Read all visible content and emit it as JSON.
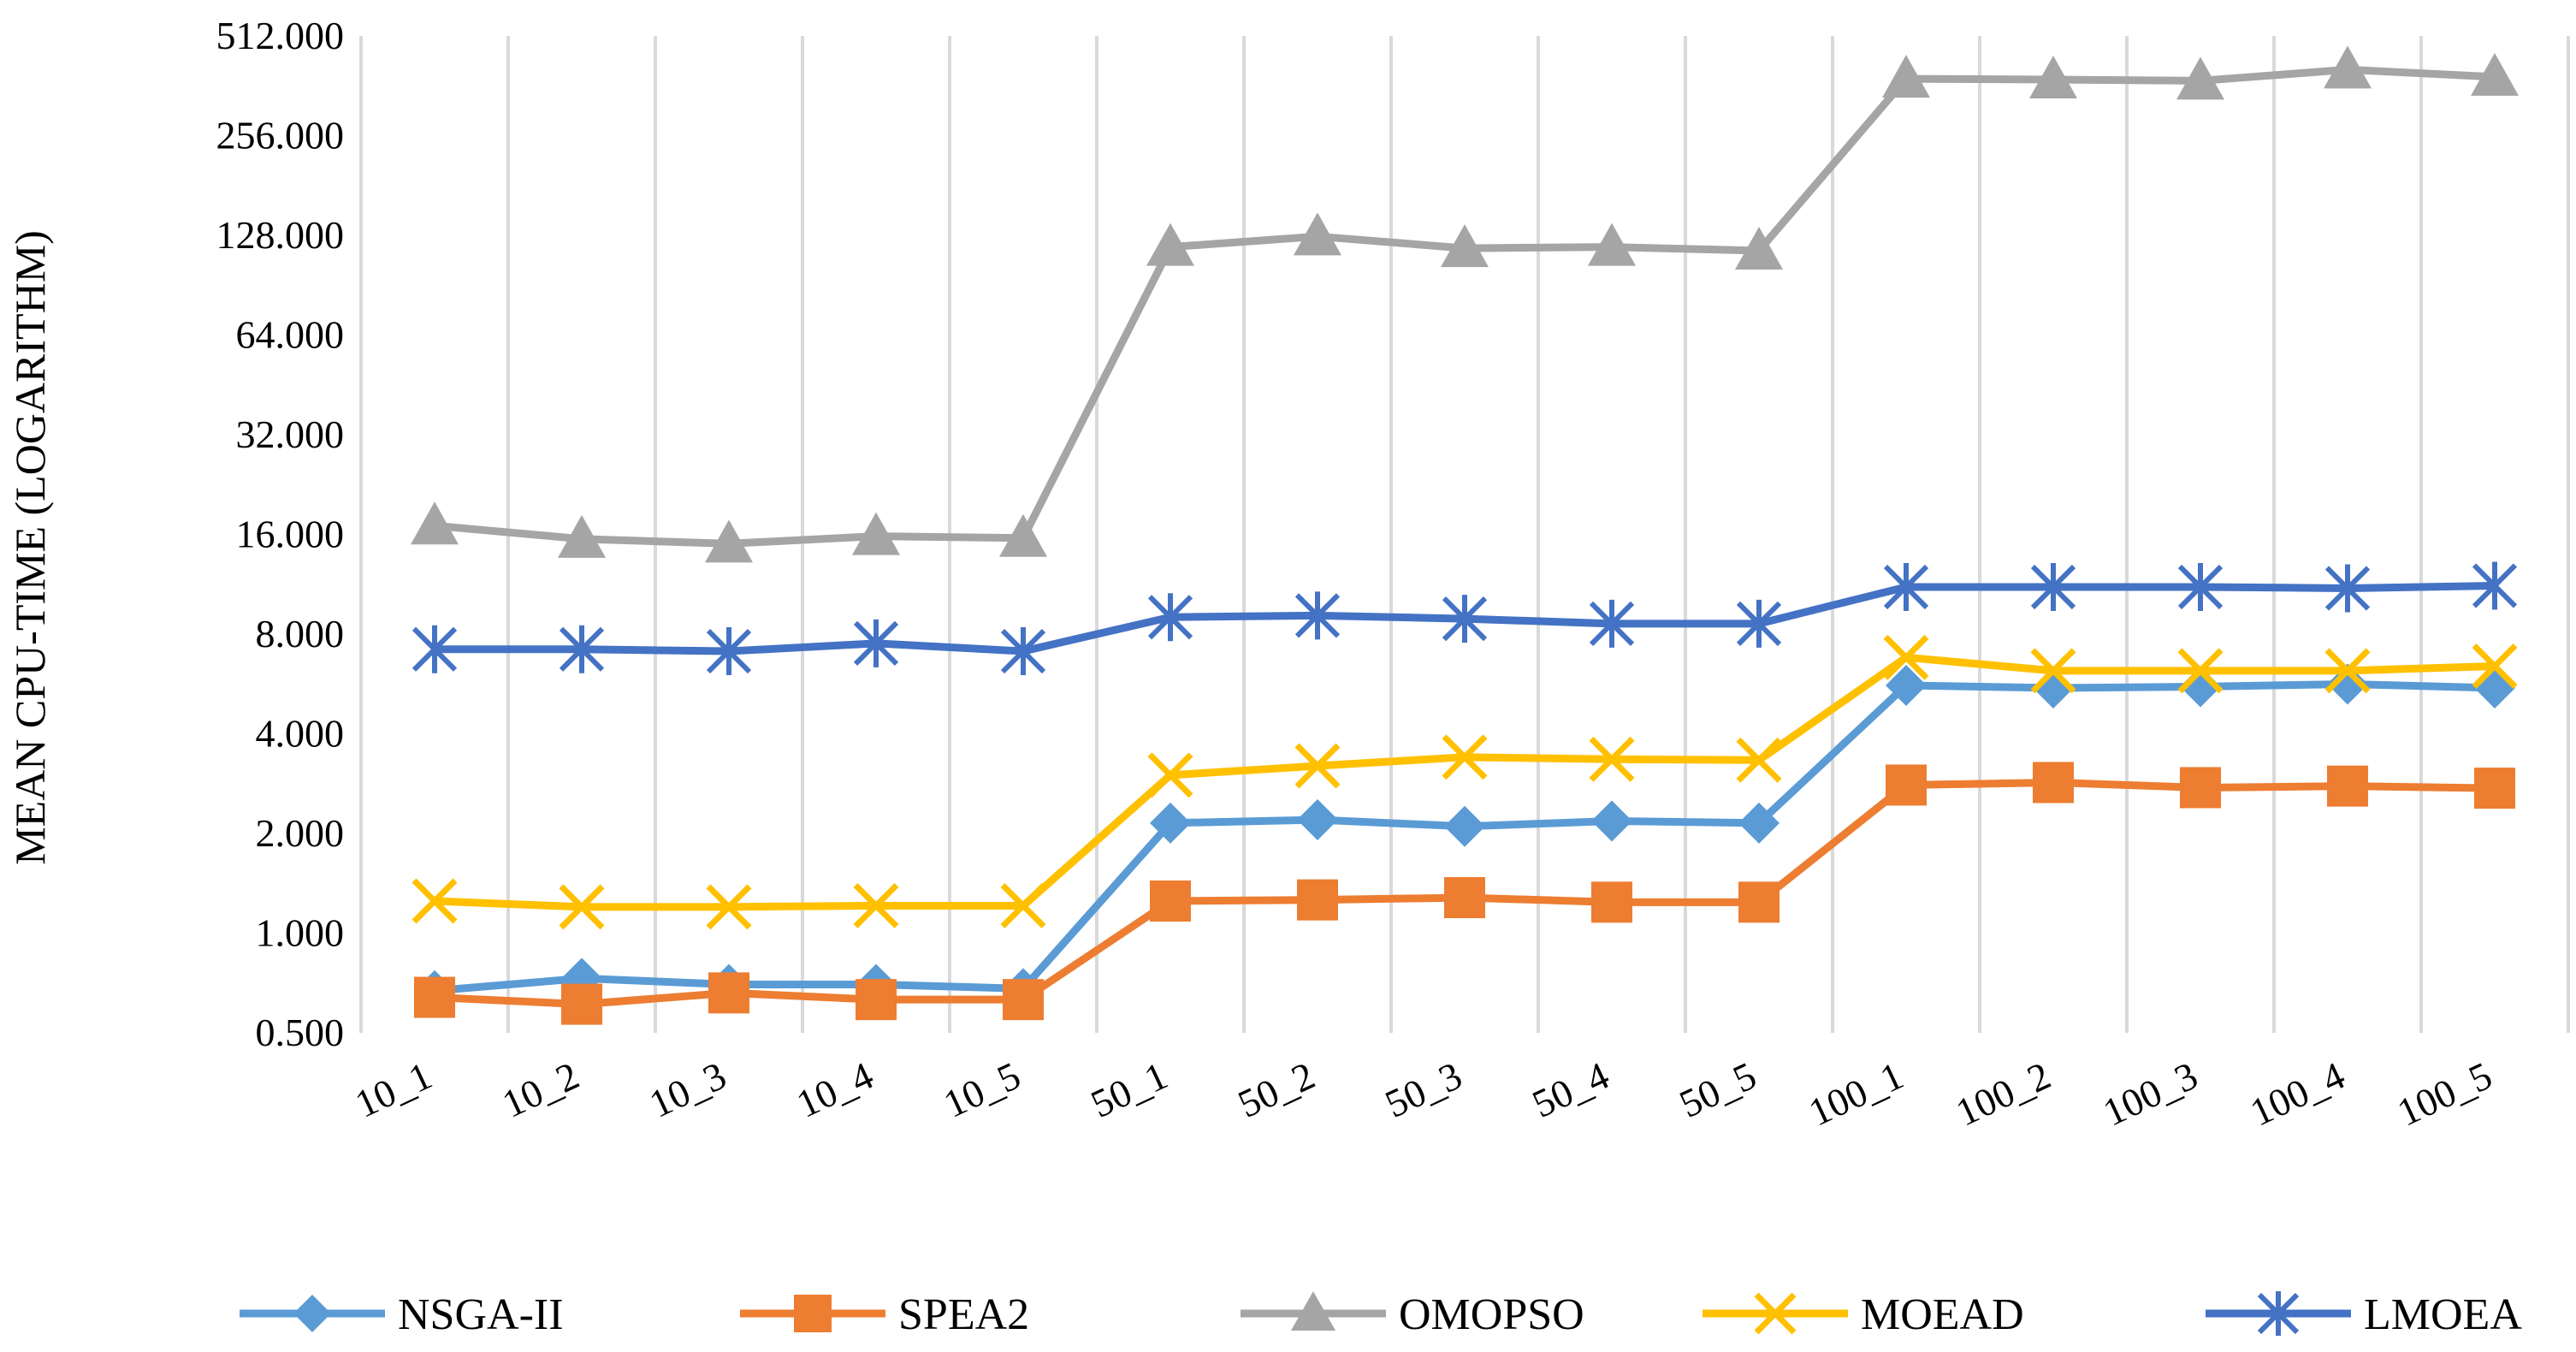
{
  "chart_data": {
    "type": "line",
    "title": "",
    "xlabel": "",
    "ylabel": "MEAN CPU-TIME (LOGARITHM)",
    "yscale": "log2",
    "ylim": [
      0.5,
      512
    ],
    "yticks": [
      "0.500",
      "1.000",
      "2.000",
      "4.000",
      "8.000",
      "16.000",
      "32.000",
      "64.000",
      "128.000",
      "256.000",
      "512.000"
    ],
    "ytick_values": [
      0.5,
      1,
      2,
      4,
      8,
      16,
      32,
      64,
      128,
      256,
      512
    ],
    "grid": "vertical",
    "legend_position": "bottom",
    "categories": [
      "10_1",
      "10_2",
      "10_3",
      "10_4",
      "10_5",
      "50_1",
      "50_2",
      "50_3",
      "50_4",
      "50_5",
      "100_1",
      "100_2",
      "100_3",
      "100_4",
      "100_5"
    ],
    "series": [
      {
        "name": "NSGA-II",
        "color": "#5B9BD5",
        "marker": "diamond",
        "values": [
          0.67,
          0.73,
          0.7,
          0.7,
          0.68,
          2.15,
          2.2,
          2.1,
          2.18,
          2.15,
          5.6,
          5.5,
          5.55,
          5.65,
          5.5
        ]
      },
      {
        "name": "SPEA2",
        "color": "#ED7D31",
        "marker": "square",
        "values": [
          0.64,
          0.61,
          0.66,
          0.63,
          0.63,
          1.25,
          1.26,
          1.28,
          1.24,
          1.24,
          2.8,
          2.85,
          2.75,
          2.78,
          2.74
        ]
      },
      {
        "name": "OMOPSO",
        "color": "#A5A5A5",
        "marker": "triangle",
        "values": [
          17.0,
          15.5,
          15.0,
          15.8,
          15.6,
          118,
          127,
          117,
          118,
          115,
          380,
          378,
          375,
          405,
          385
        ]
      },
      {
        "name": "MOEAD",
        "color": "#FFC000",
        "marker": "x",
        "values": [
          1.25,
          1.2,
          1.2,
          1.21,
          1.21,
          3.0,
          3.2,
          3.4,
          3.35,
          3.33,
          6.8,
          6.2,
          6.2,
          6.2,
          6.4
        ]
      },
      {
        "name": "LMOEA",
        "color": "#4472C4",
        "marker": "star",
        "values": [
          7.2,
          7.2,
          7.1,
          7.5,
          7.1,
          9.0,
          9.1,
          8.9,
          8.6,
          8.6,
          11.1,
          11.1,
          11.1,
          11.0,
          11.2
        ]
      }
    ]
  }
}
